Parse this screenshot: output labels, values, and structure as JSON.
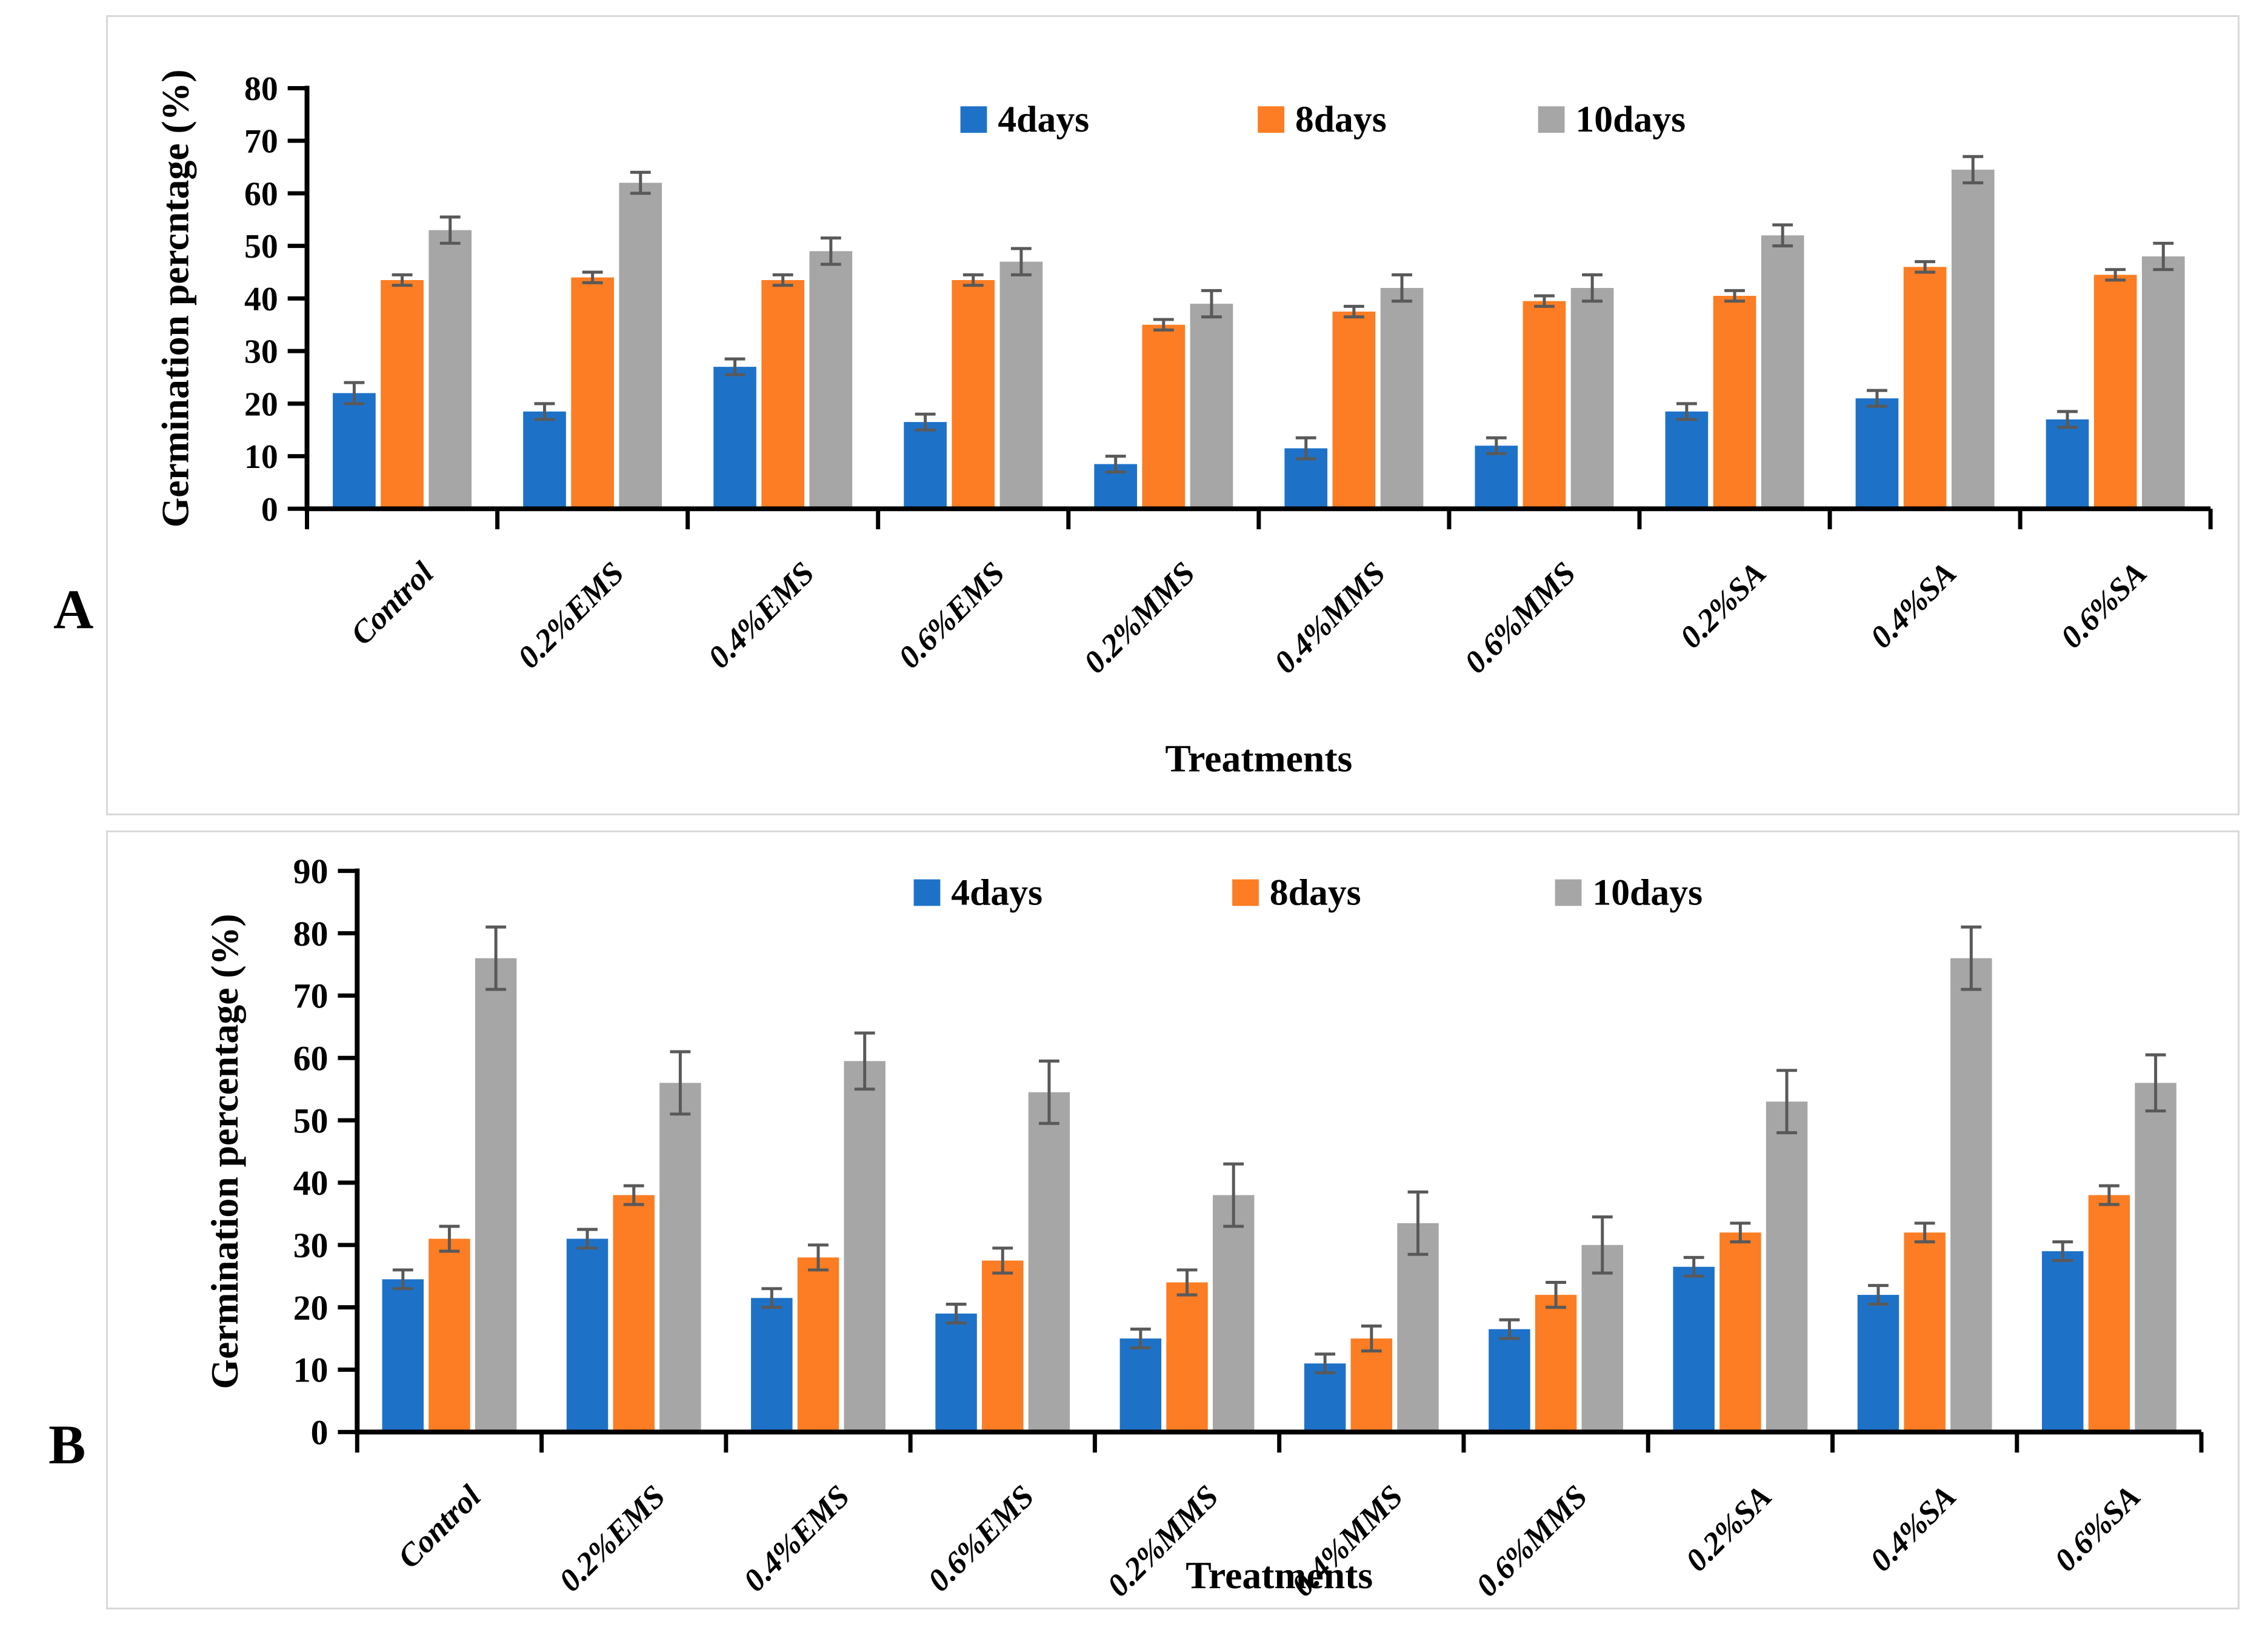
{
  "page": {
    "background": "#ffffff"
  },
  "panels": [
    {
      "label": "A"
    },
    {
      "label": "B"
    }
  ],
  "colors": {
    "series_4days": "#1d72c8",
    "series_8days": "#fc7d23",
    "series_10days": "#a6a6a6",
    "error_bar": "#595959",
    "axis": "#000000",
    "panel_border": "#d9d9d9"
  },
  "chart_data": [
    {
      "type": "bar",
      "panel": "A",
      "title": "",
      "ylabel": "Germination percntage (%)",
      "xlabel": "Treatments",
      "ylim": [
        0,
        80
      ],
      "ytick_step": 10,
      "grid": false,
      "legend_position": "top-center",
      "legend": [
        "4days",
        "8days",
        "10days"
      ],
      "categories": [
        "Control",
        "0.2%EMS",
        "0.4%EMS",
        "0.6%EMS",
        "0.2%MMS",
        "0.4%MMS",
        "0.6%MMS",
        "0.2%SA",
        "0.4%SA",
        "0.6%SA"
      ],
      "series": [
        {
          "name": "4days",
          "color": "#1d72c8",
          "values": [
            22,
            18.5,
            27,
            16.5,
            8.5,
            11.5,
            12,
            18.5,
            21,
            17
          ],
          "errors": [
            2,
            1.5,
            1.5,
            1.5,
            1.5,
            2,
            1.5,
            1.5,
            1.5,
            1.5
          ]
        },
        {
          "name": "8days",
          "color": "#fc7d23",
          "values": [
            43.5,
            44,
            43.5,
            43.5,
            35,
            37.5,
            39.5,
            40.5,
            46,
            44.5
          ],
          "errors": [
            1,
            1,
            1,
            1,
            1,
            1,
            1,
            1,
            1,
            1
          ]
        },
        {
          "name": "10days",
          "color": "#a6a6a6",
          "values": [
            53,
            62,
            49,
            47,
            39,
            42,
            42,
            52,
            64.5,
            48
          ],
          "errors": [
            2.5,
            2,
            2.5,
            2.5,
            2.5,
            2.5,
            2.5,
            2,
            2.5,
            2.5
          ]
        }
      ],
      "error_bar_color": "#595959"
    },
    {
      "type": "bar",
      "panel": "B",
      "title": "",
      "ylabel": "Germination percentage (%)",
      "xlabel": "Treatments",
      "ylim": [
        0,
        90
      ],
      "ytick_step": 10,
      "grid": false,
      "legend_position": "top-center",
      "legend": [
        "4days",
        "8days",
        "10days"
      ],
      "categories": [
        "Control",
        "0.2%EMS",
        "0.4%EMS",
        "0.6%EMS",
        "0.2%MMS",
        "0.4%MMS",
        "0.6%MMS",
        "0.2%SA",
        "0.4%SA",
        "0.6%SA"
      ],
      "series": [
        {
          "name": "4days",
          "color": "#1d72c8",
          "values": [
            24.5,
            31,
            21.5,
            19,
            15,
            11,
            16.5,
            26.5,
            22,
            29
          ],
          "errors": [
            1.5,
            1.5,
            1.5,
            1.5,
            1.5,
            1.5,
            1.5,
            1.5,
            1.5,
            1.5
          ]
        },
        {
          "name": "8days",
          "color": "#fc7d23",
          "values": [
            31,
            38,
            28,
            27.5,
            24,
            15,
            22,
            32,
            32,
            38
          ],
          "errors": [
            2,
            1.5,
            2,
            2,
            2,
            2,
            2,
            1.5,
            1.5,
            1.5
          ]
        },
        {
          "name": "10days",
          "color": "#a6a6a6",
          "values": [
            76,
            56,
            59.5,
            54.5,
            38,
            33.5,
            30,
            53,
            76,
            56
          ],
          "errors": [
            5,
            5,
            4.5,
            5,
            5,
            5,
            4.5,
            5,
            5,
            4.5
          ]
        }
      ],
      "error_bar_color": "#595959"
    }
  ]
}
